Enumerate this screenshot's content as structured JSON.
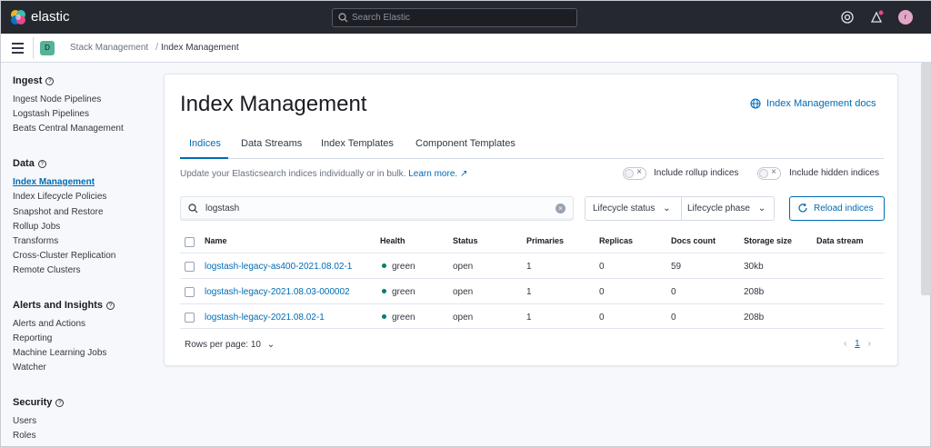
{
  "header": {
    "brand": "elastic",
    "search_placeholder": "Search Elastic",
    "avatar_initial": "r"
  },
  "breadcrumbs": {
    "space_initial": "D",
    "items": [
      "Stack Management",
      "Index Management"
    ]
  },
  "sidebar": {
    "sections": [
      {
        "title": "Ingest",
        "items": [
          "Ingest Node Pipelines",
          "Logstash Pipelines",
          "Beats Central Management"
        ]
      },
      {
        "title": "Data",
        "items": [
          "Index Management",
          "Index Lifecycle Policies",
          "Snapshot and Restore",
          "Rollup Jobs",
          "Transforms",
          "Cross-Cluster Replication",
          "Remote Clusters"
        ]
      },
      {
        "title": "Alerts and Insights",
        "items": [
          "Alerts and Actions",
          "Reporting",
          "Machine Learning Jobs",
          "Watcher"
        ]
      },
      {
        "title": "Security",
        "items": [
          "Users",
          "Roles"
        ]
      }
    ],
    "active_item": "Index Management"
  },
  "main": {
    "title": "Index Management",
    "docs_link": "Index Management docs",
    "tabs": [
      "Indices",
      "Data Streams",
      "Index Templates",
      "Component Templates"
    ],
    "active_tab": "Indices",
    "description": "Update your Elasticsearch indices individually or in bulk.",
    "learn_more": "Learn more.",
    "toggles": [
      "Include rollup indices",
      "Include hidden indices"
    ],
    "search_value": "logstash",
    "filters": [
      "Lifecycle status",
      "Lifecycle phase"
    ],
    "reload_label": "Reload indices",
    "columns": [
      "Name",
      "Health",
      "Status",
      "Primaries",
      "Replicas",
      "Docs count",
      "Storage size",
      "Data stream"
    ],
    "rows": [
      {
        "name": "logstash-legacy-as400-2021.08.02-1",
        "health": "green",
        "status": "open",
        "primaries": "1",
        "replicas": "0",
        "docs": "59",
        "size": "30kb",
        "stream": ""
      },
      {
        "name": "logstash-legacy-2021.08.03-000002",
        "health": "green",
        "status": "open",
        "primaries": "1",
        "replicas": "0",
        "docs": "0",
        "size": "208b",
        "stream": ""
      },
      {
        "name": "logstash-legacy-2021.08.02-1",
        "health": "green",
        "status": "open",
        "primaries": "1",
        "replicas": "0",
        "docs": "0",
        "size": "208b",
        "stream": ""
      }
    ],
    "rows_per_page": "Rows per page: 10",
    "current_page": "1"
  },
  "colors": {
    "link": "#006bb4",
    "health_green": "#017d73",
    "header_bg": "#25282f"
  }
}
